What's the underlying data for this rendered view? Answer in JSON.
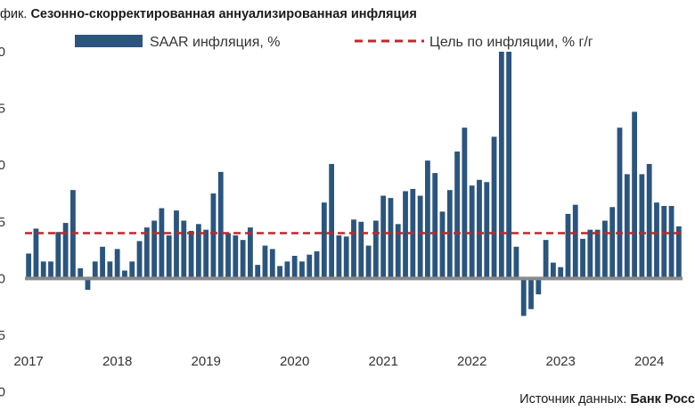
{
  "title_prefix": "фик.",
  "title": "Сезонно-скорректированная аннуализированная инфляция",
  "source_prefix": "Источник данных:",
  "source_name": "Банк Росс",
  "colors": {
    "bar": "#2b557d",
    "target": "#c1272d",
    "zero_line": "#8a8a8a"
  },
  "chart_data": {
    "type": "bar",
    "legend_placement": "top",
    "series": [
      {
        "name": "SAAR инфляция, %",
        "type": "bar",
        "values": [
          2.2,
          4.4,
          1.5,
          1.5,
          4.1,
          4.9,
          7.8,
          0.9,
          -1.0,
          1.5,
          2.8,
          1.5,
          2.6,
          0.7,
          1.5,
          3.3,
          4.5,
          5.1,
          6.2,
          3.8,
          6.0,
          5.1,
          4.2,
          4.8,
          4.3,
          7.5,
          9.4,
          4.0,
          3.8,
          3.4,
          4.5,
          1.2,
          2.9,
          2.6,
          1.1,
          1.5,
          2.0,
          1.5,
          2.1,
          2.4,
          6.7,
          10.1,
          3.8,
          3.7,
          5.2,
          5.0,
          2.9,
          5.1,
          7.3,
          7.1,
          4.8,
          7.7,
          7.9,
          7.3,
          10.4,
          9.3,
          5.9,
          7.8,
          11.2,
          13.3,
          8.2,
          8.7,
          8.5,
          12.5,
          20.0,
          20.0,
          2.8,
          -3.3,
          -2.7,
          -1.4,
          3.4,
          1.4,
          1.0,
          5.7,
          6.5,
          3.5,
          4.3,
          4.3,
          5.1,
          6.3,
          13.3,
          9.2,
          14.7,
          9.2,
          10.1,
          6.7,
          6.4,
          6.4,
          4.6
        ]
      },
      {
        "name": "Цель по инфляции, % г/г",
        "type": "line",
        "values": [
          4.0
        ]
      }
    ],
    "x_start": "2017-01",
    "x_tick_labels": [
      "2017",
      "2018",
      "2019",
      "2020",
      "2021",
      "2022",
      "2023",
      "2024"
    ],
    "y_tick_labels": [
      "0",
      "5",
      "0",
      "5",
      "0",
      "5",
      "0"
    ],
    "ylim": [
      -5,
      20
    ],
    "target_value": 4.0,
    "grid": false
  }
}
